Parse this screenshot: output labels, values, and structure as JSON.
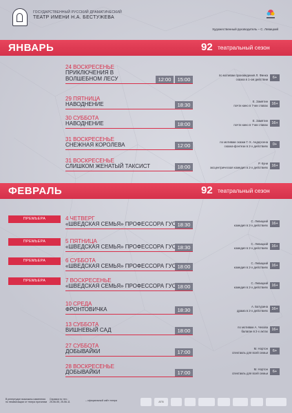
{
  "header": {
    "theatre_sub": "ГОСУДАРСТВЕННЫЙ РУССКИЙ ДРАМАТИЧЕСКИЙ",
    "theatre_name": "ТЕАТР ИМЕНИ Н.А. БЕСТУЖЕВА",
    "director": "Художественный руководитель – С. Левицкий"
  },
  "months": [
    {
      "month": "ЯНВАРЬ",
      "season_num": "92",
      "season_txt": "театральный сезон",
      "events": [
        {
          "date": "24 ВОСКРЕСЕНЬЕ",
          "title": [
            "ПРИКЛЮЧЕНИЯ В",
            "ВОЛШЕБНОМ ЛЕСУ"
          ],
          "times": [
            "12:00",
            "15:00"
          ],
          "desc": [
            "по мотивам произведения Л. Финка",
            "сказка в 1-ом действии"
          ],
          "age": "6+",
          "premiere": ""
        },
        {
          "date": "29 ПЯТНИЦА",
          "title": [
            "НАВОДНЕНИЕ"
          ],
          "times": [
            "18:30"
          ],
          "desc": [
            "Е. Замятин",
            "почти кино в 7-ми главах"
          ],
          "age": "16+",
          "premiere": ""
        },
        {
          "date": "30 СУББОТА",
          "title": [
            "НАВОДНЕНИЕ"
          ],
          "times": [
            "18:00"
          ],
          "desc": [
            "Е. Замятин",
            "почти кино в 7-ми главах"
          ],
          "age": "16+",
          "premiere": ""
        },
        {
          "date": "31 ВОСКРЕСЕНЬЕ",
          "title": [
            "СНЕЖНАЯ КОРОЛЕВА"
          ],
          "times": [
            "12:00"
          ],
          "desc": [
            "по мотивам сказки Г.-Х. Андерсена",
            "сказка-фэнтези в 2-х действиях"
          ],
          "age": "0+",
          "premiere": ""
        },
        {
          "date": "31 ВОСКРЕСЕНЬЕ",
          "title": [
            "СЛИШКОМ ЖЕНАТЫЙ ТАКСИСТ"
          ],
          "times": [
            "18:00"
          ],
          "desc": [
            "Р. Куни",
            "эксцентрическая комедия в 2-х действиях"
          ],
          "age": "16+",
          "premiere": ""
        }
      ]
    },
    {
      "month": "ФЕВРАЛЬ",
      "season_num": "92",
      "season_txt": "театральный сезон",
      "events": [
        {
          "date": "4  ЧЕТВЕРГ",
          "title": [
            "«ШВЕДСКАЯ СЕМЬЯ» ПРОФЕССОРА ГУСТАФА"
          ],
          "times": [
            "18:30"
          ],
          "desc": [
            "С. Левицкий",
            "комедия в 2-х действиях"
          ],
          "age": "16+",
          "premiere": "ПРЕМЬЕРА"
        },
        {
          "date": "5 ПЯТНИЦА",
          "title": [
            "«ШВЕДСКАЯ СЕМЬЯ» ПРОФЕССОРА ГУСТАФА"
          ],
          "times": [
            "18:30"
          ],
          "desc": [
            "С. Левицкий",
            "комедия в 2-х действиях"
          ],
          "age": "16+",
          "premiere": "ПРЕМЬЕРА"
        },
        {
          "date": "6 СУББОТА",
          "title": [
            "«ШВЕДСКАЯ СЕМЬЯ» ПРОФЕССОРА ГУСТАФА"
          ],
          "times": [
            "18:00"
          ],
          "desc": [
            "С. Левицкий",
            "комедия в 2-х действиях"
          ],
          "age": "16+",
          "premiere": "ПРЕМЬЕРА"
        },
        {
          "date": "7 ВОСКРЕСЕНЬЕ",
          "title": [
            "«ШВЕДСКАЯ СЕМЬЯ» ПРОФЕССОРА ГУСТАФА"
          ],
          "times": [
            "18:00"
          ],
          "desc": [
            "С. Левицкий",
            "комедия в 2-х действиях"
          ],
          "age": "16+",
          "premiere": "ПРЕМЬЕРА"
        },
        {
          "date": "10 СРЕДА",
          "title": [
            "ФРОНТОВИЧКА"
          ],
          "times": [
            "18:30"
          ],
          "desc": [
            "А. Батурина",
            "драма в 2-х действиях"
          ],
          "age": "16+",
          "premiere": ""
        },
        {
          "date": "13 СУББОТА",
          "title": [
            "ВИШНЕВЫЙ САД"
          ],
          "times": [
            "18:00"
          ],
          "desc": [
            "по мотивам А. Чехова",
            "балаган в 2-х актах"
          ],
          "age": "16+",
          "premiere": ""
        },
        {
          "date": "27 СУББОТА",
          "title": [
            "ДОБЫВАЙКИ"
          ],
          "times": [
            "17:00"
          ],
          "desc": [
            "М. Нортон",
            "спектакль для всей семьи"
          ],
          "age": "6+",
          "premiere": ""
        },
        {
          "date": "28 ВОСКРЕСЕНЬЕ",
          "title": [
            "ДОБЫВАЙКИ"
          ],
          "times": [
            "17:00"
          ],
          "desc": [
            "М. Нортон",
            "спектакль для всей семьи"
          ],
          "age": "6+",
          "premiere": ""
        }
      ]
    }
  ],
  "footer": {
    "notes": [
      "В репертуаре возможны изменения",
      "по независящим от театра причинам"
    ],
    "contacts": [
      "Справки по тел.:",
      "25-56-55, 25-56-11"
    ],
    "site": "– официальный сайт театра",
    "logos": [
      "ATB",
      "",
      "",
      "",
      "",
      "",
      "",
      ""
    ]
  }
}
